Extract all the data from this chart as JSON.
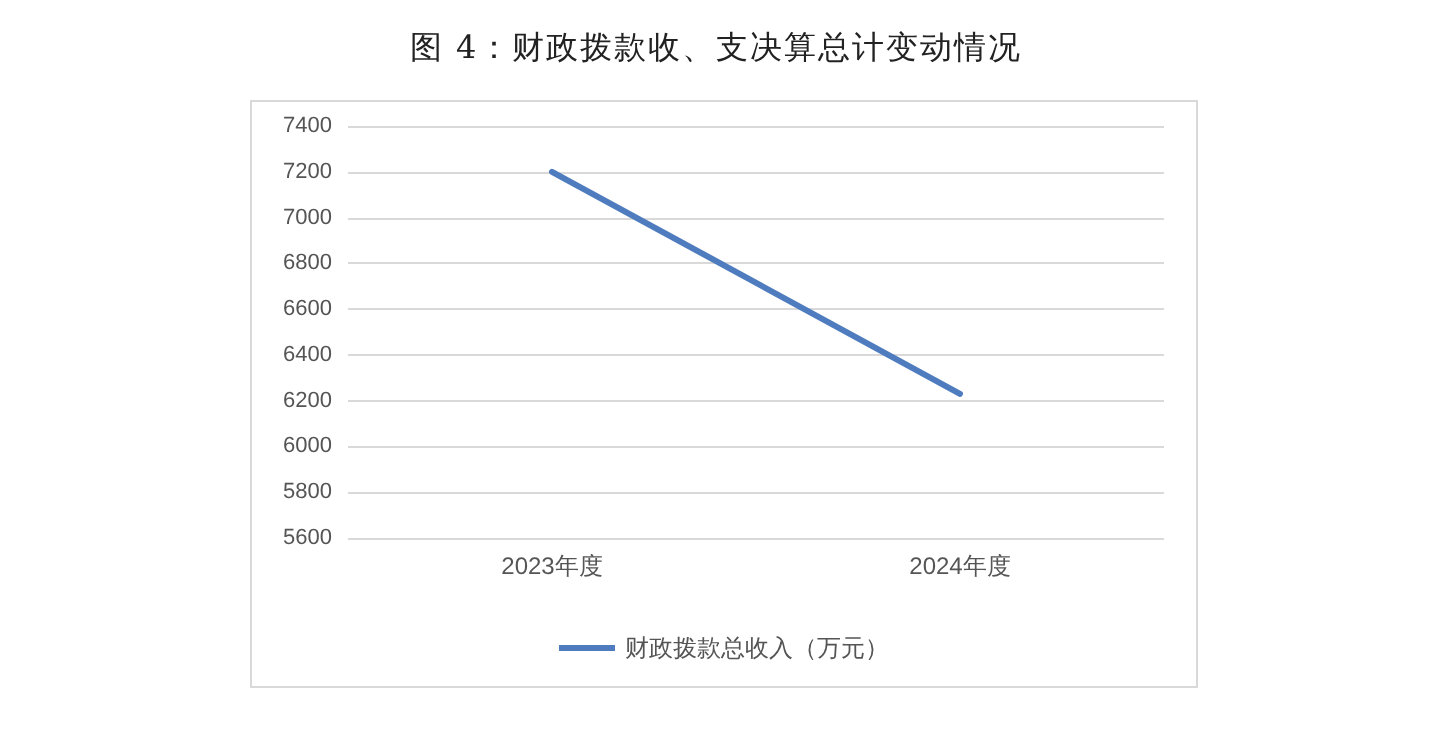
{
  "chart_data": {
    "type": "line",
    "title": "图 4：财政拨款收、支决算总计变动情况",
    "categories": [
      "2023年度",
      "2024年度"
    ],
    "series": [
      {
        "name": "财政拨款总收入（万元）",
        "color": "#4f7cbe",
        "values": [
          7200,
          6230
        ]
      }
    ],
    "ylim": [
      5600,
      7400
    ],
    "yticks": [
      5600,
      5800,
      6000,
      6200,
      6400,
      6600,
      6800,
      7000,
      7200,
      7400
    ],
    "grid": "y",
    "legend": "bottom",
    "marker": "none",
    "line_style": "solid"
  }
}
